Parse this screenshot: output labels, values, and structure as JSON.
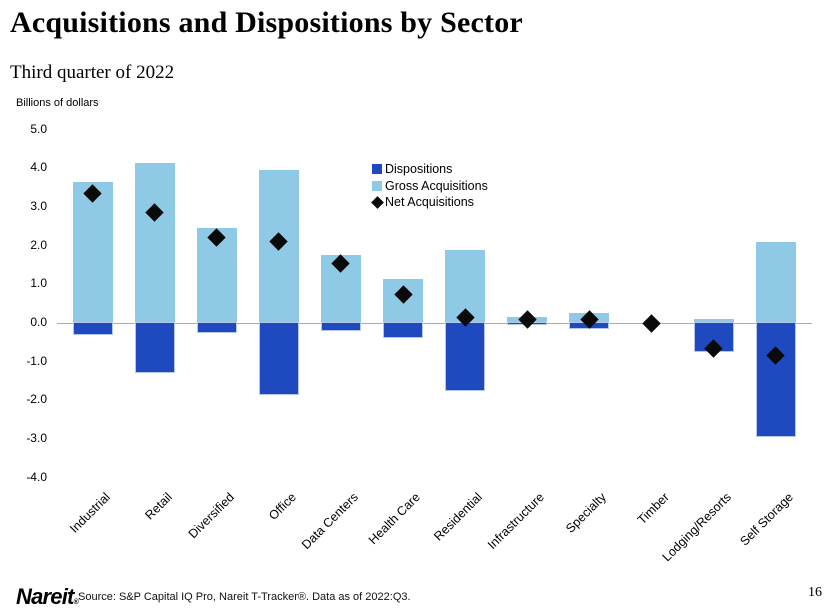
{
  "slide": {
    "title": "Acquisitions and Dispositions by Sector",
    "subtitle": "Third quarter of 2022",
    "source": "Source: S&P Capital IQ Pro, Nareit T-Tracker®. Data as of 2022:Q3.",
    "page_number": "16",
    "logo_text": "Nareit",
    "logo_mark": "®"
  },
  "chart_data": {
    "type": "bar",
    "title": "Acquisitions and Dispositions by Sector",
    "subtitle": "Third quarter of 2022",
    "ylabel": "Billions of dollars",
    "xlabel": "",
    "ylim": [
      -4.0,
      5.0
    ],
    "yticks": [
      "5.0",
      "4.0",
      "3.0",
      "2.0",
      "1.0",
      "0.0",
      "-1.0",
      "-2.0",
      "-3.0",
      "-4.0"
    ],
    "grid": false,
    "legend_position": "top-center-inside",
    "categories": [
      "Industrial",
      "Retail",
      "Diversified",
      "Office",
      "Data Centers",
      "Health Care",
      "Residential",
      "Infrastructure",
      "Specialty",
      "Timber",
      "Lodging/Resorts",
      "Self Storage"
    ],
    "series": [
      {
        "name": "Dispositions",
        "color": "#1f49be",
        "marker": "square",
        "values": [
          -0.3,
          -1.3,
          -0.25,
          -1.85,
          -0.2,
          -0.4,
          -1.75,
          -0.05,
          -0.15,
          0.0,
          -0.75,
          -2.95
        ]
      },
      {
        "name": "Gross Acquisitions",
        "color": "#8ecae6",
        "marker": "square",
        "values": [
          3.65,
          4.15,
          2.45,
          3.95,
          1.75,
          1.15,
          1.9,
          0.15,
          0.25,
          0.0,
          0.1,
          2.1
        ]
      },
      {
        "name": "Net Acquisitions",
        "color": "#0a0a0a",
        "marker": "diamond",
        "values": [
          3.35,
          2.85,
          2.2,
          2.1,
          1.55,
          0.75,
          0.15,
          0.1,
          0.1,
          0.0,
          -0.65,
          -0.85
        ]
      }
    ]
  }
}
